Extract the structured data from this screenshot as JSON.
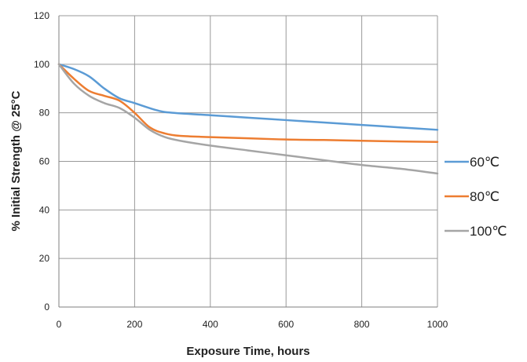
{
  "chart_data": {
    "type": "line",
    "title": "",
    "xlabel": "Exposure Time, hours",
    "ylabel": "% Initial Strength @ 25°C",
    "xlim": [
      0,
      1000
    ],
    "ylim": [
      0,
      120
    ],
    "x_ticks": [
      "0",
      "200",
      "400",
      "600",
      "800",
      "1000"
    ],
    "y_ticks": [
      "0",
      "20",
      "40",
      "60",
      "80",
      "100",
      "120"
    ],
    "grid": "on",
    "legend_position": "right",
    "series": [
      {
        "name": "60℃",
        "color": "#5b9bd5",
        "points": [
          [
            0,
            100
          ],
          [
            40,
            98
          ],
          [
            80,
            95
          ],
          [
            120,
            90
          ],
          [
            160,
            86
          ],
          [
            200,
            84
          ],
          [
            260,
            81
          ],
          [
            300,
            80
          ],
          [
            400,
            79
          ],
          [
            500,
            78
          ],
          [
            600,
            77
          ],
          [
            700,
            76
          ],
          [
            800,
            75
          ],
          [
            900,
            74
          ],
          [
            1000,
            73
          ]
        ]
      },
      {
        "name": "80℃",
        "color": "#ed7d31",
        "points": [
          [
            0,
            100
          ],
          [
            40,
            94
          ],
          [
            80,
            89
          ],
          [
            120,
            87
          ],
          [
            160,
            85
          ],
          [
            200,
            80
          ],
          [
            240,
            74
          ],
          [
            280,
            71.5
          ],
          [
            320,
            70.5
          ],
          [
            400,
            70
          ],
          [
            500,
            69.5
          ],
          [
            600,
            69
          ],
          [
            700,
            68.8
          ],
          [
            800,
            68.5
          ],
          [
            900,
            68.2
          ],
          [
            1000,
            68
          ]
        ]
      },
      {
        "name": "100℃",
        "color": "#a5a5a5",
        "points": [
          [
            0,
            100
          ],
          [
            40,
            92
          ],
          [
            80,
            87
          ],
          [
            120,
            84
          ],
          [
            160,
            82
          ],
          [
            200,
            78
          ],
          [
            240,
            73
          ],
          [
            280,
            70
          ],
          [
            320,
            68.5
          ],
          [
            400,
            66.5
          ],
          [
            500,
            64.5
          ],
          [
            600,
            62.5
          ],
          [
            700,
            60.5
          ],
          [
            800,
            58.5
          ],
          [
            900,
            57
          ],
          [
            1000,
            55
          ]
        ]
      }
    ]
  }
}
